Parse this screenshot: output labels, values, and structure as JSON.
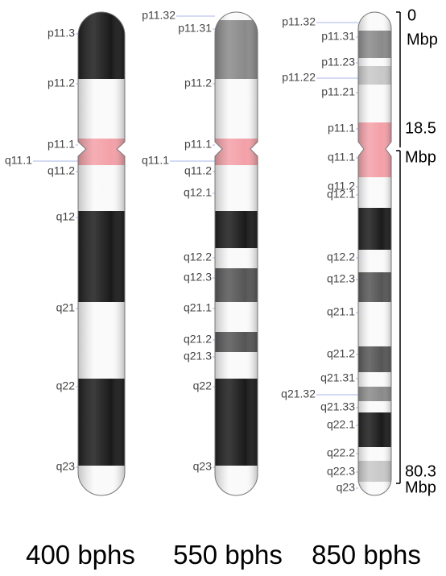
{
  "chromosomes": [
    {
      "caption": "400 bphs",
      "bands": [
        "p11.3",
        "p11.2",
        "p11.1",
        "q11.1",
        "q11.2",
        "q12",
        "q21",
        "q22",
        "q23"
      ]
    },
    {
      "caption": "550 bphs",
      "bands": [
        "p11.32",
        "p11.31",
        "p11.2",
        "p11.1",
        "q11.1",
        "q11.2",
        "q12.1",
        "q12.2",
        "q12.3",
        "q21.1",
        "q21.2",
        "q21.3",
        "q22",
        "q23"
      ]
    },
    {
      "caption": "850 bphs",
      "bands": [
        "p11.32",
        "p11.31",
        "p11.23",
        "p11.22",
        "p11.21",
        "p11.1",
        "q11.1",
        "q11.2",
        "q12.1",
        "q12.2",
        "q12.3",
        "q21.1",
        "q21.2",
        "q21.31",
        "q21.32",
        "q21.33",
        "q22.1",
        "q22.2",
        "q22.3",
        "q23"
      ]
    }
  ],
  "scale": {
    "top": "0",
    "top_unit": "Mbp",
    "mid": "18.5",
    "mid_unit": "Mbp",
    "bottom": "80.3",
    "bottom_unit": "Mbp"
  }
}
